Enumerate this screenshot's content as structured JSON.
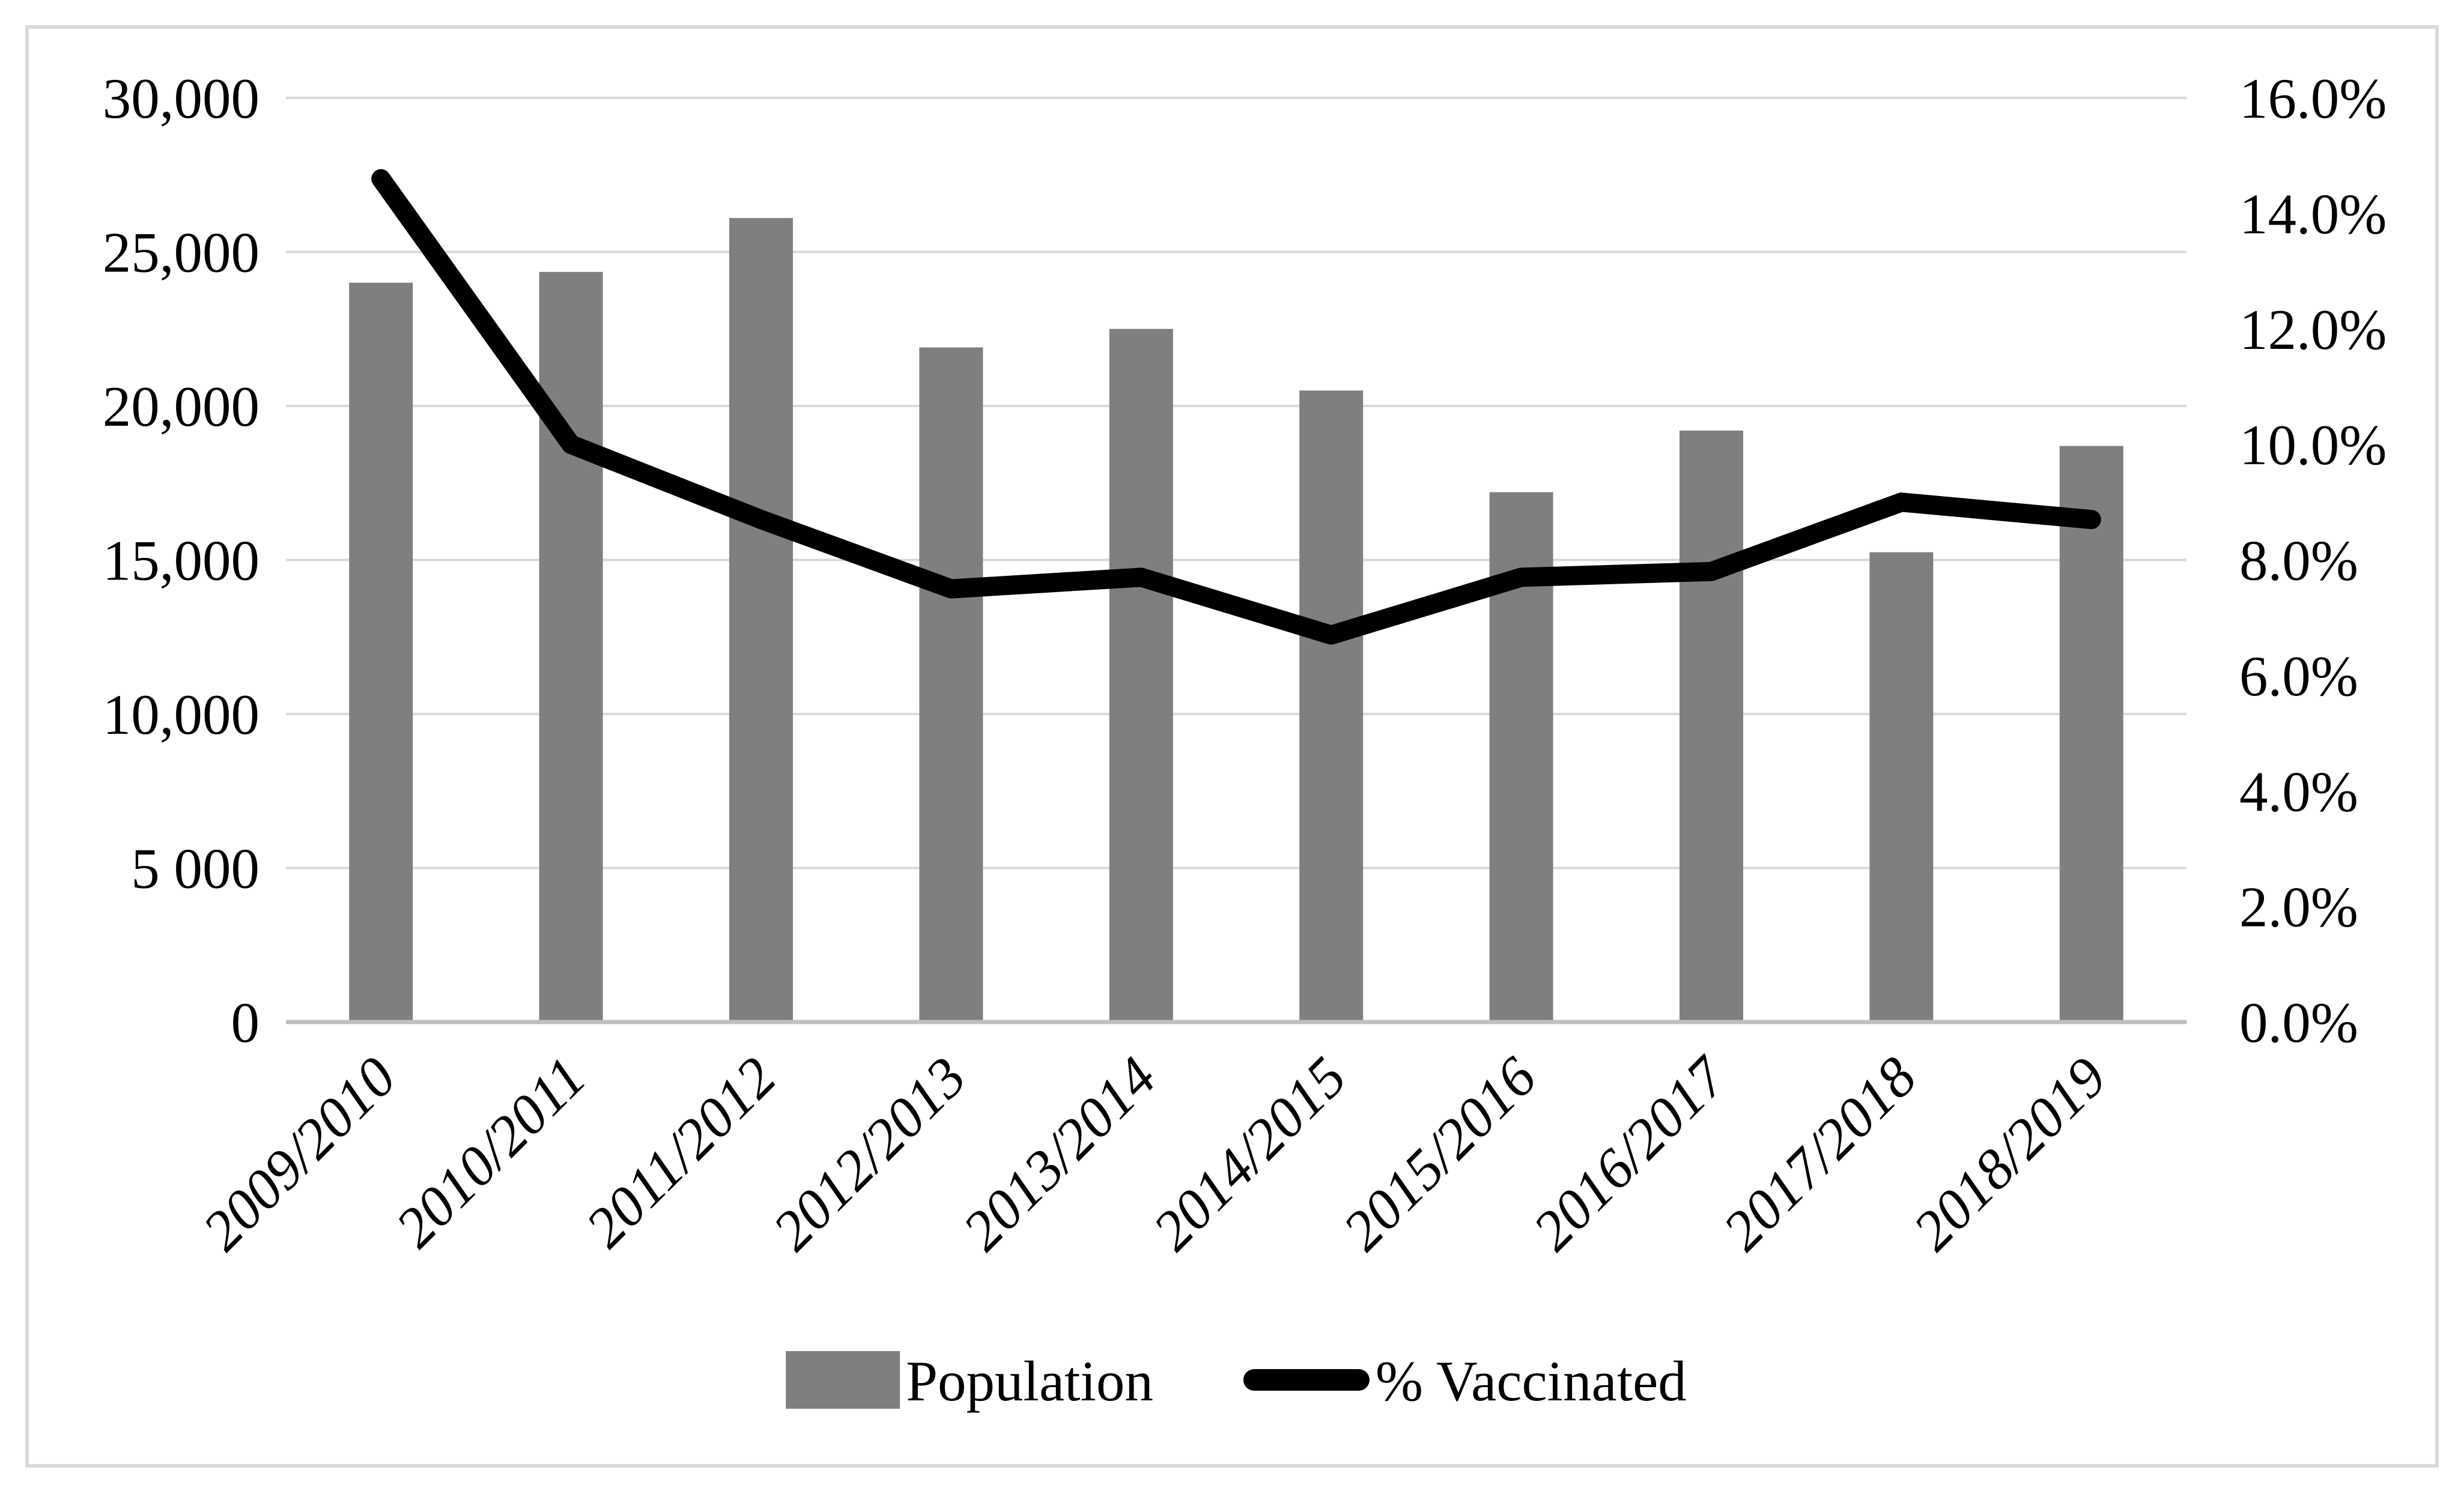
{
  "page": {
    "background": "#ffffff"
  },
  "chart_data": {
    "type": "combo",
    "title": "",
    "categories": [
      "2009/2010",
      "2010/2011",
      "2011/2012",
      "2012/2013",
      "2013/2014",
      "2014/2015",
      "2015/2016",
      "2016/2017",
      "2017/2018",
      "2018/2019"
    ],
    "series": [
      {
        "name": "Population",
        "type": "bar",
        "axis": "left",
        "color": "#7f7f7f",
        "values": [
          24000,
          24350,
          26100,
          21900,
          22500,
          20500,
          17200,
          19200,
          15250,
          18700
        ]
      },
      {
        "name": "% Vaccinated",
        "type": "line",
        "axis": "right",
        "color": "#000000",
        "values": [
          14.6,
          10.0,
          8.7,
          7.5,
          7.7,
          6.7,
          7.7,
          7.8,
          9.0,
          8.7
        ]
      }
    ],
    "left_axis": {
      "min": 0,
      "max": 30000,
      "step": 5000,
      "ticks": [
        "30,000",
        "25,000",
        "20,000",
        "15,000",
        "10,000",
        "5 000",
        "0"
      ],
      "values": [
        30000,
        25000,
        20000,
        15000,
        10000,
        5000,
        0
      ]
    },
    "right_axis": {
      "min": 0,
      "max": 16,
      "step": 2,
      "ticks": [
        "16.0%",
        "14.0%",
        "12.0%",
        "10.0%",
        "8.0%",
        "6.0%",
        "4.0%",
        "2.0%",
        "0.0%"
      ],
      "values": [
        16,
        14,
        12,
        10,
        8,
        6,
        4,
        2,
        0
      ]
    },
    "grid": "horizontal",
    "legend_position": "bottom"
  },
  "legend": {
    "population": "Population",
    "vaccinated": "% Vaccinated"
  },
  "colors": {
    "bar": "#7f7f7f",
    "line": "#000000",
    "gridline": "#d9d9d9",
    "axis_line": "#bfbfbf",
    "text": "#000000",
    "border": "#d9d9d9",
    "background": "#ffffff"
  }
}
